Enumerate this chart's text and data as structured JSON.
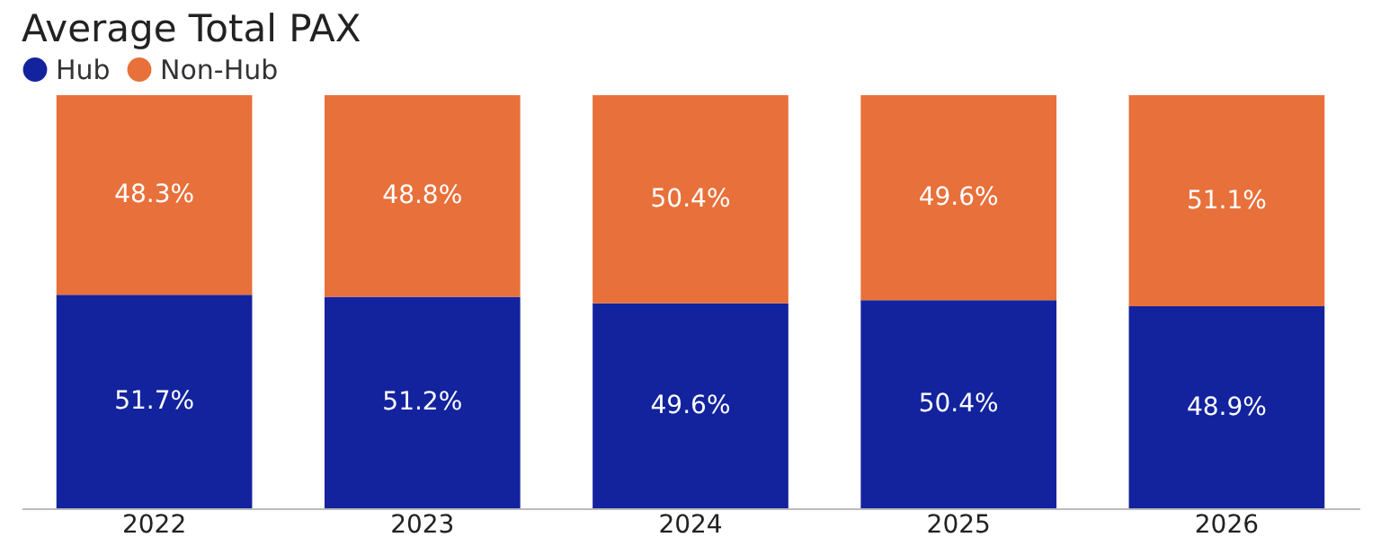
{
  "chart_data": {
    "type": "bar",
    "title": "Average Total PAX",
    "stacked": true,
    "legend": "top left",
    "grid": false,
    "tick_labels": "x",
    "categories": [
      "2022",
      "2023",
      "2024",
      "2025",
      "2026"
    ],
    "series": [
      {
        "name": "Hub",
        "color": "#13239e",
        "values": [
          51.7,
          51.2,
          49.6,
          50.4,
          48.9
        ],
        "value_labels": [
          "51.7%",
          "51.2%",
          "49.6%",
          "50.4%",
          "48.9%"
        ]
      },
      {
        "name": "Non-Hub",
        "color": "#e8703a",
        "values": [
          48.3,
          48.8,
          50.4,
          49.6,
          51.1
        ],
        "value_labels": [
          "48.3%",
          "48.8%",
          "50.4%",
          "49.6%",
          "51.1%"
        ]
      }
    ]
  }
}
